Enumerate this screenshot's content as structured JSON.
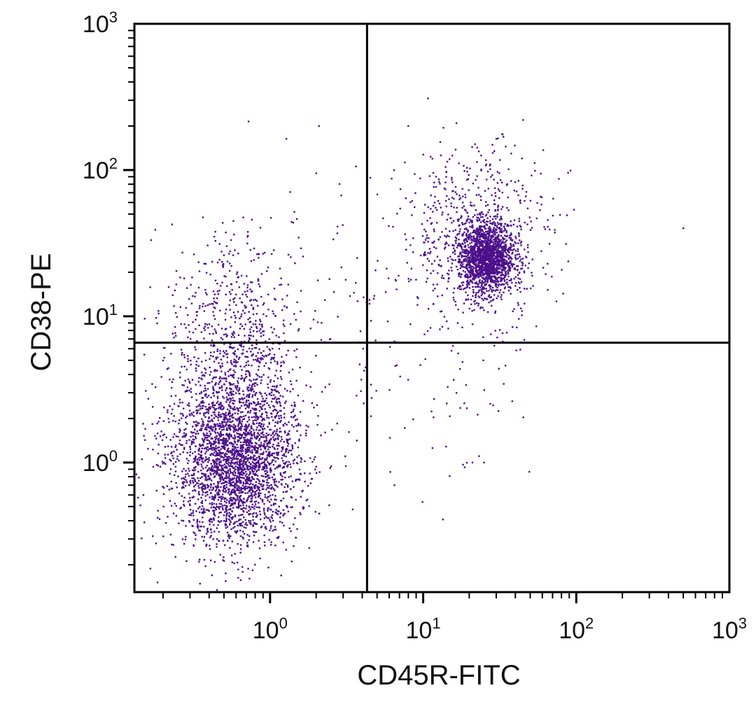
{
  "chart_data": {
    "type": "scatter",
    "title": "",
    "xlabel": "CD45R-FITC",
    "ylabel": "CD38-PE",
    "x_scale": "log",
    "y_scale": "log",
    "xlim": [
      0.13,
      1000
    ],
    "ylim": [
      0.13,
      1000
    ],
    "x_ticks": [
      {
        "value": 1,
        "base": "10",
        "exp": "0"
      },
      {
        "value": 10,
        "base": "10",
        "exp": "1"
      },
      {
        "value": 100,
        "base": "10",
        "exp": "2"
      },
      {
        "value": 1000,
        "base": "10",
        "exp": "3"
      }
    ],
    "y_ticks": [
      {
        "value": 1,
        "base": "10",
        "exp": "0"
      },
      {
        "value": 10,
        "base": "10",
        "exp": "1"
      },
      {
        "value": 100,
        "base": "10",
        "exp": "2"
      },
      {
        "value": 1000,
        "base": "10",
        "exp": "3"
      }
    ],
    "quadrant_gates": {
      "x": 4.3,
      "y": 6.6
    },
    "point_color": "#4b0f8a",
    "populations": [
      {
        "center_x": 0.6,
        "center_y": 0.9,
        "spread_x": 0.2,
        "spread_y": 0.26,
        "count": 2300
      },
      {
        "center_x": 0.62,
        "center_y": 2.4,
        "spread_x": 0.2,
        "spread_y": 0.3,
        "count": 900
      },
      {
        "center_x": 0.55,
        "center_y": 11,
        "spread_x": 0.2,
        "spread_y": 0.3,
        "count": 350
      },
      {
        "center_x": 26,
        "center_y": 25,
        "spread_x": 0.09,
        "spread_y": 0.12,
        "count": 1700
      },
      {
        "center_x": 22,
        "center_y": 38,
        "spread_x": 0.25,
        "spread_y": 0.3,
        "count": 600
      },
      {
        "center_x": 4,
        "center_y": 8,
        "spread_x": 0.5,
        "spread_y": 0.5,
        "count": 140
      },
      {
        "center_x": 0.3,
        "center_y": 1,
        "spread_x": 0.3,
        "spread_y": 0.5,
        "count": 120
      },
      {
        "center_x": 16,
        "center_y": 3,
        "spread_x": 0.25,
        "spread_y": 0.3,
        "count": 35
      }
    ],
    "outliers": [
      {
        "x": 500,
        "y": 40
      },
      {
        "x": 8,
        "y": 200
      },
      {
        "x": 45,
        "y": 220
      },
      {
        "x": 2,
        "y": 95
      },
      {
        "x": 21,
        "y": 1.0
      },
      {
        "x": 25,
        "y": 1.0
      },
      {
        "x": 6.5,
        "y": 0.7
      },
      {
        "x": 1.2,
        "y": 0.12
      }
    ]
  }
}
